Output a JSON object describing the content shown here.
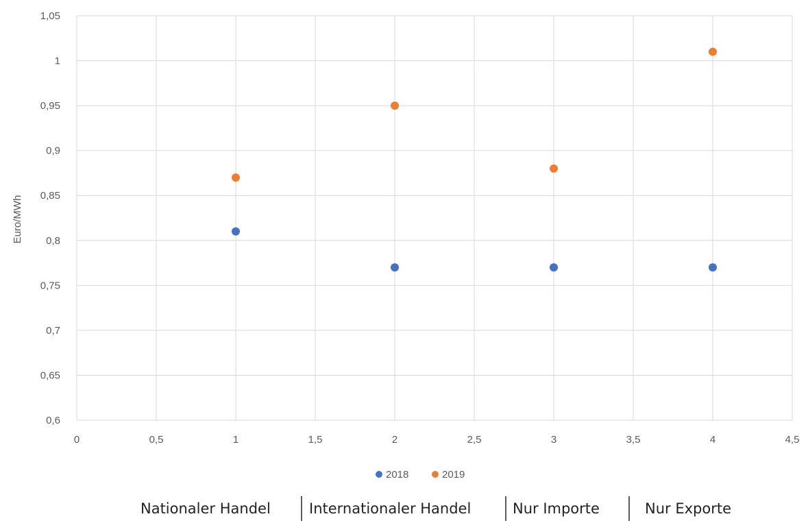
{
  "chart_data": {
    "type": "scatter",
    "title": "",
    "xlabel": "",
    "ylabel": "Euro/MWh",
    "xlim": [
      0,
      4.5
    ],
    "ylim": [
      0.6,
      1.05
    ],
    "grid": true,
    "x_ticks": [
      "0",
      "0,5",
      "1",
      "1,5",
      "2",
      "2,5",
      "3",
      "3,5",
      "4",
      "4,5"
    ],
    "y_ticks": [
      "0,6",
      "0,65",
      "0,7",
      "0,75",
      "0,8",
      "0,85",
      "0,9",
      "0,95",
      "1",
      "1,05"
    ],
    "legend_position": "bottom",
    "series": [
      {
        "name": "2018",
        "color": "#4472C4",
        "x": [
          1,
          2,
          3,
          4
        ],
        "y": [
          0.81,
          0.77,
          0.77,
          0.77
        ]
      },
      {
        "name": "2019",
        "color": "#ED7D31",
        "x": [
          1,
          2,
          3,
          4
        ],
        "y": [
          0.87,
          0.95,
          0.88,
          1.01
        ]
      }
    ],
    "category_labels": [
      "Nationaler Handel",
      "Internationaler Handel",
      "Nur Importe",
      "Nur Exporte"
    ]
  }
}
